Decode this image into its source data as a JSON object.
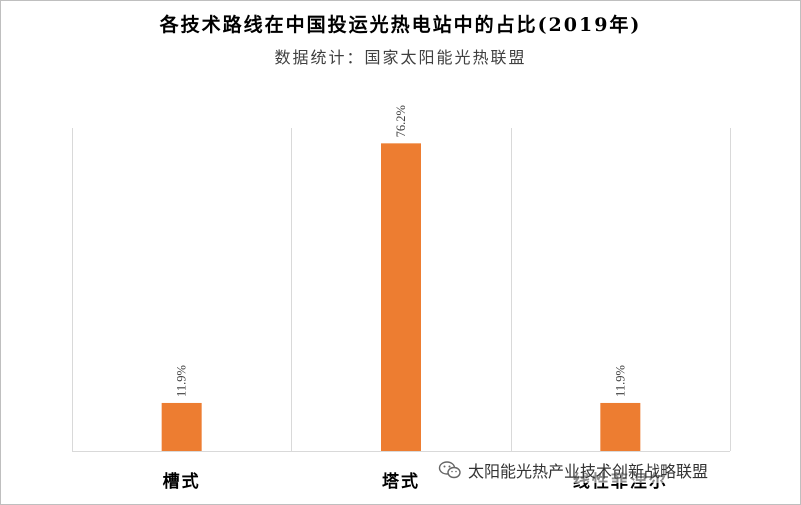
{
  "chart_data": {
    "type": "bar",
    "title": "各技术路线在中国投运光热电站中的占比(2019年)",
    "subtitle": "数据统计：国家太阳能光热联盟",
    "categories": [
      "槽式",
      "塔式",
      "线性菲涅尔"
    ],
    "values": [
      11.9,
      76.2,
      11.9
    ],
    "data_labels": [
      "11.9%",
      "76.2%",
      "11.9%"
    ],
    "ylim": [
      0,
      80
    ],
    "bar_color": "#ED7D31",
    "grid": "vertical category separators",
    "legend": "none"
  },
  "watermark": {
    "text": "太阳能光热产业技术创新战略联盟",
    "icon": "wechat-icon"
  }
}
